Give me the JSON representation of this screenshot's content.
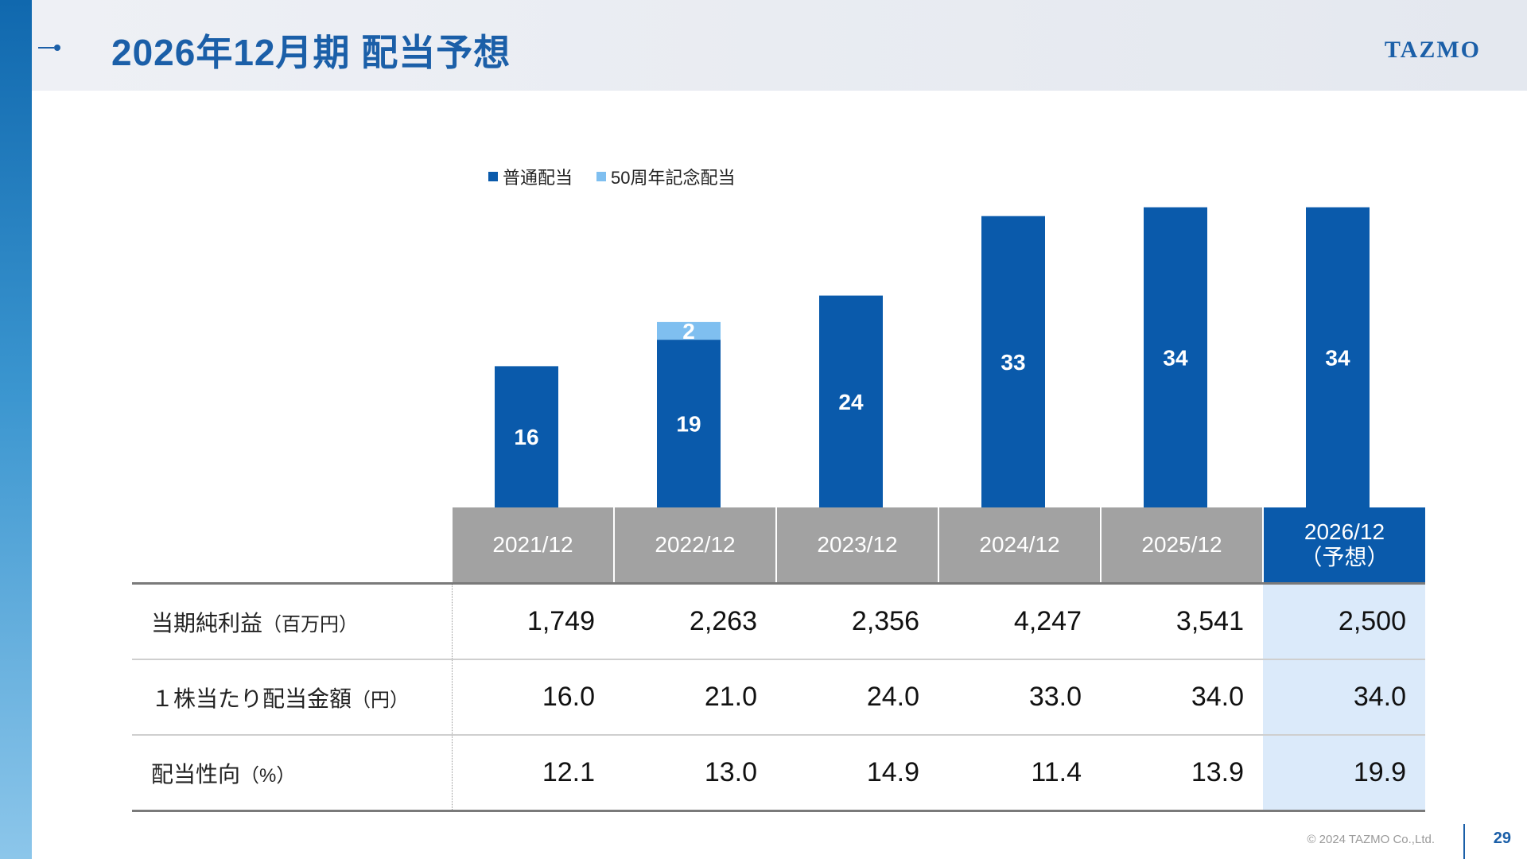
{
  "slide": {
    "title": "2026年12月期 配当予想",
    "logo": "TAZMO",
    "copyright": "© 2024 TAZMO Co.,Ltd.",
    "page_number": "29"
  },
  "colors": {
    "regular": "#0a5aab",
    "commemorative": "#7fbff0",
    "forecast_bg": "#dbeafa",
    "header_gray": "#a2a2a2"
  },
  "chart_data": {
    "type": "bar",
    "stacked": true,
    "categories": [
      "2021/12",
      "2022/12",
      "2023/12",
      "2024/12",
      "2025/12",
      "2026/12"
    ],
    "series": [
      {
        "name": "普通配当",
        "values": [
          16,
          19,
          24,
          33,
          34,
          34
        ]
      },
      {
        "name": "50周年記念配当",
        "values": [
          0,
          2,
          0,
          0,
          0,
          0
        ]
      }
    ],
    "legend_position": "top",
    "grid": false
  },
  "table": {
    "headers": [
      {
        "line1": "2021/12",
        "line2": ""
      },
      {
        "line1": "2022/12",
        "line2": ""
      },
      {
        "line1": "2023/12",
        "line2": ""
      },
      {
        "line1": "2024/12",
        "line2": ""
      },
      {
        "line1": "2025/12",
        "line2": ""
      },
      {
        "line1": "2026/12",
        "line2": "（予想）"
      }
    ],
    "rows": [
      {
        "label": "当期純利益",
        "unit": "（百万円）",
        "values": [
          "1,749",
          "2,263",
          "2,356",
          "4,247",
          "3,541",
          "2,500"
        ]
      },
      {
        "label": "１株当たり配当金額",
        "unit": "（円）",
        "values": [
          "16.0",
          "21.0",
          "24.0",
          "33.0",
          "34.0",
          "34.0"
        ]
      },
      {
        "label": "配当性向",
        "unit": "（%）",
        "values": [
          "12.1",
          "13.0",
          "14.9",
          "11.4",
          "13.9",
          "19.9"
        ]
      }
    ]
  }
}
